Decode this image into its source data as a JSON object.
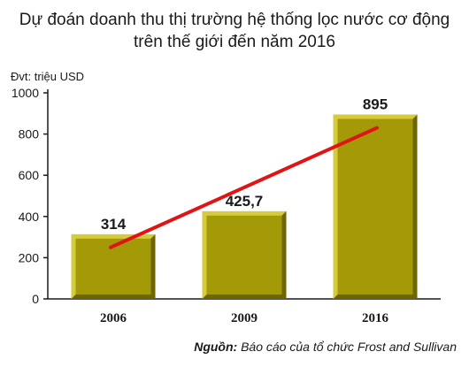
{
  "chart_data": {
    "type": "bar",
    "title_line1": "Dự đoán doanh thu thị trường hệ thống lọc nước cơ động",
    "title_line2": "trên thế giới đến năm 2016",
    "unit_label": "Đvt: triệu USD",
    "categories": [
      "2006",
      "2009",
      "2016"
    ],
    "values": [
      314,
      425.7,
      895
    ],
    "value_labels": [
      "314",
      "425,7",
      "895"
    ],
    "ylim": [
      0,
      1000
    ],
    "yticks": [
      0,
      200,
      400,
      600,
      800,
      1000
    ],
    "trend_line": {
      "from": 250,
      "to": 830
    },
    "grid": false,
    "colors": {
      "bar_face": "#a49a08",
      "bar_light": "#d6cb3a",
      "bar_dark": "#6d6600",
      "trend": "#e01414",
      "axis": "#1a1a1a"
    }
  },
  "source": {
    "label": "Nguồn:",
    "text": " Báo cáo của tổ chức Frost and Sullivan"
  }
}
